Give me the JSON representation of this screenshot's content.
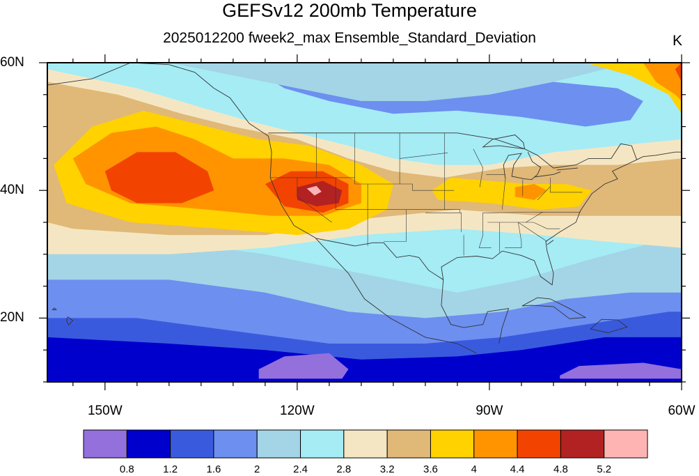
{
  "title": "GEFSv12 200mb Temperature",
  "subtitle": "2025012200 fweek2_max Ensemble_Standard_Deviation",
  "units": "K",
  "lat_labels": [
    {
      "text": "60N",
      "lat": 60
    },
    {
      "text": "40N",
      "lat": 40
    },
    {
      "text": "20N",
      "lat": 20
    }
  ],
  "lon_labels": [
    {
      "text": "150W",
      "lon": -150
    },
    {
      "text": "120W",
      "lon": -120
    },
    {
      "text": "90W",
      "lon": -90
    },
    {
      "text": "60W",
      "lon": -60
    }
  ],
  "map_extent": {
    "lon_min": -159,
    "lon_max": -60,
    "lat_min": 10,
    "lat_max": 60
  },
  "colorbar": {
    "levels": [
      "0.8",
      "1.2",
      "1.6",
      "2",
      "2.4",
      "2.8",
      "3.2",
      "3.6",
      "4",
      "4.4",
      "4.8",
      "5.2"
    ],
    "colors": [
      "#9370db",
      "#0000cd",
      "#3a5ade",
      "#6d8ff0",
      "#a3d5e6",
      "#a5ecf5",
      "#f5e6c3",
      "#e0b878",
      "#ffd200",
      "#ff9400",
      "#f24400",
      "#b22222",
      "#ffb4b4"
    ]
  },
  "chart_data": {
    "type": "heatmap",
    "title": "GEFSv12 200mb Temperature",
    "subtitle": "2025012200 fweek2_max Ensemble_Standard_Deviation",
    "units": "K",
    "xlim": [
      -159,
      -60
    ],
    "ylim": [
      10,
      60
    ],
    "x_ticks": [
      "150W",
      "120W",
      "90W",
      "60W"
    ],
    "y_ticks": [
      "60N",
      "40N",
      "20N"
    ],
    "contour_levels": [
      0.8,
      1.2,
      1.6,
      2,
      2.4,
      2.8,
      3.2,
      3.6,
      4,
      4.4,
      4.8,
      5.2
    ],
    "features": [
      {
        "lon": -140,
        "lat": 42,
        "value": 4.9
      },
      {
        "lon": -117,
        "lat": 39.5,
        "value": 5.3
      },
      {
        "lon": -84,
        "lat": 39.5,
        "value": 4.2
      },
      {
        "lon": -61,
        "lat": 57,
        "value": 4.8
      },
      {
        "lon": -120,
        "lat": 13,
        "value": 0.7
      },
      {
        "lon": -70,
        "lat": 12,
        "value": 0.7
      }
    ]
  }
}
